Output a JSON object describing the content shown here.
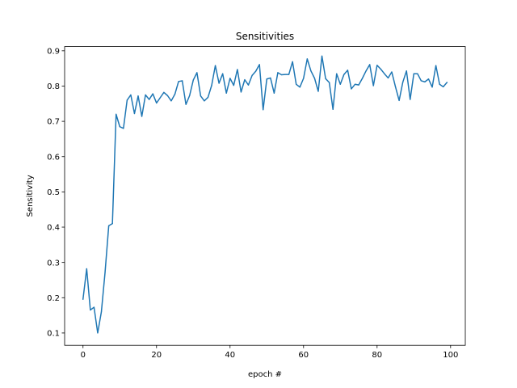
{
  "chart_data": {
    "type": "line",
    "title": "Sensitivities",
    "xlabel": "epoch #",
    "ylabel": "Sensitivity",
    "xlim": [
      -5,
      104
    ],
    "ylim": [
      0.065,
      0.912
    ],
    "xticks": [
      0,
      20,
      40,
      60,
      80,
      100
    ],
    "yticks": [
      0.1,
      0.2,
      0.3,
      0.4,
      0.5,
      0.6,
      0.7,
      0.8,
      0.9
    ],
    "xtick_labels": [
      "0",
      "20",
      "40",
      "60",
      "80",
      "100"
    ],
    "ytick_labels": [
      "0.1",
      "0.2",
      "0.3",
      "0.4",
      "0.5",
      "0.6",
      "0.7",
      "0.8",
      "0.9"
    ],
    "grid": false,
    "line_color": "#1f77b4",
    "series": [
      {
        "x": [
          0,
          1,
          2,
          3,
          4,
          5,
          6,
          7,
          8,
          9,
          10,
          11,
          12,
          13,
          14,
          15,
          16,
          17,
          18,
          19,
          20,
          21,
          22,
          23,
          24,
          25,
          26,
          27,
          28,
          29,
          30,
          31,
          32,
          33,
          34,
          35,
          36,
          37,
          38,
          39,
          40,
          41,
          42,
          43,
          44,
          45,
          46,
          47,
          48,
          49,
          50,
          51,
          52,
          53,
          54,
          55,
          56,
          57,
          58,
          59,
          60,
          61,
          62,
          63,
          64,
          65,
          66,
          67,
          68,
          69,
          70,
          71,
          72,
          73,
          74,
          75,
          76,
          77,
          78,
          79,
          80,
          81,
          82,
          83,
          84,
          85,
          86,
          87,
          88,
          89,
          90,
          91,
          92,
          93,
          94,
          95,
          96,
          97,
          98,
          99
        ],
        "values": [
          0.196,
          0.282,
          0.165,
          0.173,
          0.1,
          0.16,
          0.272,
          0.404,
          0.41,
          0.72,
          0.685,
          0.68,
          0.76,
          0.775,
          0.722,
          0.772,
          0.714,
          0.775,
          0.762,
          0.778,
          0.752,
          0.767,
          0.782,
          0.773,
          0.758,
          0.777,
          0.813,
          0.815,
          0.748,
          0.773,
          0.817,
          0.838,
          0.772,
          0.758,
          0.768,
          0.802,
          0.858,
          0.808,
          0.835,
          0.78,
          0.822,
          0.802,
          0.847,
          0.783,
          0.818,
          0.803,
          0.83,
          0.842,
          0.861,
          0.733,
          0.82,
          0.823,
          0.78,
          0.838,
          0.832,
          0.833,
          0.833,
          0.869,
          0.805,
          0.797,
          0.822,
          0.877,
          0.843,
          0.822,
          0.785,
          0.885,
          0.821,
          0.81,
          0.734,
          0.835,
          0.805,
          0.833,
          0.845,
          0.792,
          0.805,
          0.803,
          0.822,
          0.843,
          0.861,
          0.801,
          0.859,
          0.848,
          0.835,
          0.823,
          0.84,
          0.798,
          0.759,
          0.811,
          0.843,
          0.762,
          0.835,
          0.835,
          0.815,
          0.812,
          0.82,
          0.797,
          0.858,
          0.805,
          0.798,
          0.81
        ]
      }
    ]
  }
}
